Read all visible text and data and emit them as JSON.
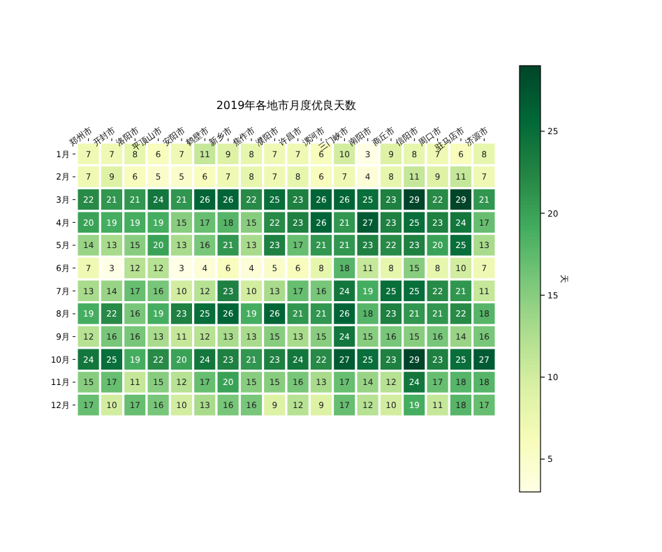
{
  "chart_data": {
    "type": "heatmap",
    "title": "2019年各地市月度优良天数",
    "categories": [
      "郑州市",
      "开封市",
      "洛阳市",
      "平顶山市",
      "安阳市",
      "鹤壁市",
      "新乡市",
      "焦作市",
      "濮阳市",
      "许昌市",
      "漯河市",
      "三门峡市",
      "南阳市",
      "商丘市",
      "信阳市",
      "周口市",
      "驻马店市",
      "济源市"
    ],
    "y_categories": [
      "1月",
      "2月",
      "3月",
      "4月",
      "5月",
      "6月",
      "7月",
      "8月",
      "9月",
      "10月",
      "11月",
      "12月"
    ],
    "cells": [
      [
        7,
        7,
        8,
        6,
        7,
        11,
        9,
        8,
        7,
        7,
        6,
        10,
        3,
        9,
        8,
        7,
        6,
        8
      ],
      [
        7,
        9,
        6,
        5,
        5,
        6,
        7,
        8,
        7,
        8,
        6,
        7,
        4,
        8,
        11,
        9,
        11,
        7
      ],
      [
        22,
        21,
        21,
        24,
        21,
        26,
        26,
        22,
        25,
        23,
        26,
        26,
        25,
        23,
        29,
        22,
        29,
        21
      ],
      [
        20,
        19,
        19,
        19,
        15,
        17,
        18,
        15,
        22,
        23,
        26,
        21,
        27,
        23,
        25,
        23,
        24,
        17
      ],
      [
        14,
        13,
        15,
        20,
        13,
        16,
        21,
        13,
        23,
        17,
        21,
        21,
        23,
        22,
        23,
        20,
        25,
        13
      ],
      [
        7,
        3,
        12,
        12,
        3,
        4,
        6,
        4,
        5,
        6,
        8,
        18,
        11,
        8,
        15,
        8,
        10,
        7
      ],
      [
        13,
        14,
        17,
        16,
        10,
        12,
        23,
        10,
        13,
        17,
        16,
        24,
        19,
        25,
        25,
        22,
        21,
        11
      ],
      [
        19,
        22,
        16,
        19,
        23,
        25,
        26,
        19,
        26,
        21,
        21,
        26,
        18,
        23,
        21,
        21,
        22,
        18
      ],
      [
        12,
        16,
        16,
        13,
        11,
        12,
        13,
        13,
        15,
        13,
        15,
        24,
        15,
        16,
        15,
        16,
        14,
        16
      ],
      [
        24,
        25,
        19,
        22,
        20,
        24,
        23,
        21,
        23,
        24,
        22,
        27,
        25,
        23,
        29,
        23,
        25,
        27
      ],
      [
        15,
        17,
        11,
        15,
        12,
        17,
        20,
        15,
        15,
        16,
        13,
        17,
        14,
        12,
        24,
        17,
        18,
        18
      ],
      [
        17,
        10,
        17,
        16,
        10,
        13,
        16,
        16,
        9,
        12,
        9,
        17,
        12,
        10,
        19,
        11,
        18,
        17
      ]
    ],
    "data_labels": true,
    "clabel": "天",
    "clim": [
      3,
      29
    ],
    "cticks": [
      5,
      10,
      15,
      20,
      25
    ]
  }
}
